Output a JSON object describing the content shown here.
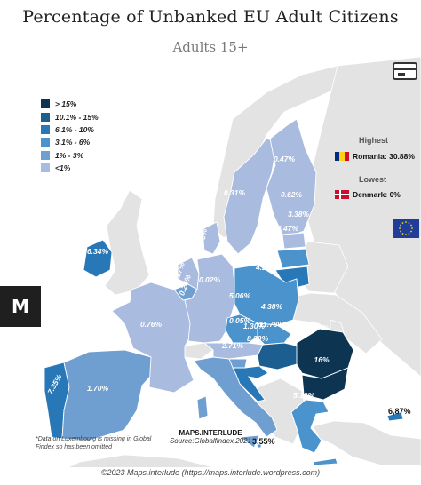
{
  "title": "Percentage of Unbanked EU Adult Citizens",
  "subtitle": "Adults 15+",
  "legend": {
    "items": [
      {
        "label": "> 15%",
        "color": "#0d3552"
      },
      {
        "label": "10.1% - 15%",
        "color": "#1b5e8f"
      },
      {
        "label": "6.1% - 10%",
        "color": "#2878b8"
      },
      {
        "label": "3.1% - 6%",
        "color": "#4a93cc"
      },
      {
        "label": "1% - 3%",
        "color": "#6f9fd0"
      },
      {
        "label": "<1%",
        "color": "#a9bbde"
      }
    ]
  },
  "highest": {
    "title": "Highest",
    "text": "Romania: 30.88%"
  },
  "lowest": {
    "title": "Lowest",
    "text": "Denmark: 0%"
  },
  "note": "*Data on Luxembourg is missing in Global Findex so has been omitted",
  "credit": {
    "name": "MAPS.INTERLUDE",
    "source": "Source:Globalfindex,2021"
  },
  "copyright": "©2023 Maps.interlude (https://maps.interlude.wordpress.com)",
  "colors": {
    "non_eu_land": "#e3e3e3",
    "border": "#ffffff",
    "background": "#ffffff"
  },
  "outside_labels": {
    "malta": "3,55%",
    "cyprus": "6,87%"
  },
  "countries": [
    {
      "name": "Portugal",
      "label": "7.35%",
      "color": "#2878b8"
    },
    {
      "name": "Spain",
      "label": "1.70%",
      "color": "#6f9fd0"
    },
    {
      "name": "France",
      "label": "0.76%",
      "color": "#a9bbde"
    },
    {
      "name": "Ireland",
      "label": "6.34%",
      "color": "#2878b8"
    },
    {
      "name": "Belgium",
      "label": "1.27%",
      "color": "#6f9fd0"
    },
    {
      "name": "Netherlands",
      "label": "0.24%",
      "color": "#a9bbde"
    },
    {
      "name": "Germany",
      "label": "0.02%",
      "color": "#a9bbde"
    },
    {
      "name": "Denmark",
      "label": "0%",
      "color": "#a9bbde"
    },
    {
      "name": "Sweden",
      "label": "0.31%",
      "color": "#a9bbde"
    },
    {
      "name": "Finland",
      "label": "0.47%",
      "color": "#a9bbde"
    },
    {
      "name": "Estonia",
      "label": "0.62%",
      "color": "#a9bbde"
    },
    {
      "name": "Latvia",
      "label": "3.38%",
      "color": "#4a93cc"
    },
    {
      "name": "Lithuania",
      "label": "6.47%",
      "color": "#2878b8"
    },
    {
      "name": "Poland",
      "label": "4.28%",
      "color": "#4a93cc"
    },
    {
      "name": "Czechia",
      "label": "5.06%",
      "color": "#4a93cc"
    },
    {
      "name": "Slovakia",
      "label": "4.38%",
      "color": "#4a93cc"
    },
    {
      "name": "Austria",
      "label": "0.05%",
      "color": "#a9bbde"
    },
    {
      "name": "Hungary",
      "label": "11.78%",
      "color": "#1b5e8f"
    },
    {
      "name": "Slovenia",
      "label": "1.30%",
      "color": "#6f9fd0"
    },
    {
      "name": "Croatia",
      "label": "8.20%",
      "color": "#2878b8"
    },
    {
      "name": "Italy",
      "label": "2.71%",
      "color": "#6f9fd0"
    },
    {
      "name": "Romania",
      "label": "30.88%",
      "color": "#0d3552"
    },
    {
      "name": "Bulgaria",
      "label": "16%",
      "color": "#0d3552"
    },
    {
      "name": "Greece",
      "label": "5.12%",
      "color": "#4a93cc"
    }
  ]
}
